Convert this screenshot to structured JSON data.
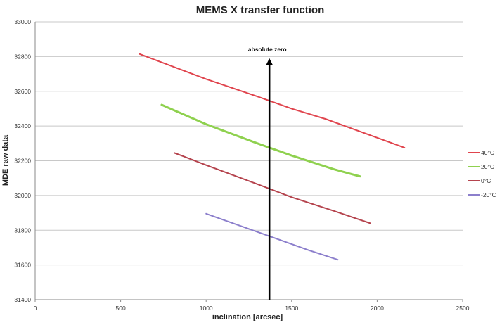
{
  "chart_data": {
    "type": "line",
    "title": "MEMS X transfer function",
    "xlabel": "inclination [arcsec]",
    "ylabel": "MDE raw data",
    "xlim": [
      0,
      2500
    ],
    "ylim": [
      31400,
      33000
    ],
    "xticks": [
      0,
      500,
      1000,
      1500,
      2000,
      2500
    ],
    "yticks": [
      31400,
      31600,
      31800,
      32000,
      32200,
      32400,
      32600,
      32800,
      33000
    ],
    "grid": "horizontal",
    "legend_position": "right",
    "series": [
      {
        "name": "40°C",
        "color": "#e0444d",
        "x": [
          610,
          1000,
          1300,
          1500,
          1700,
          2160
        ],
        "y": [
          32815,
          32670,
          32570,
          32500,
          32440,
          32275
        ]
      },
      {
        "name": "20°C",
        "color": "#8fd14f",
        "x": [
          740,
          1000,
          1300,
          1500,
          1750,
          1900
        ],
        "y": [
          32522,
          32410,
          32300,
          32230,
          32150,
          32110
        ]
      },
      {
        "name": "0°C",
        "color": "#b5444e",
        "x": [
          815,
          1000,
          1300,
          1500,
          1750,
          1960
        ],
        "y": [
          32245,
          32175,
          32065,
          31990,
          31910,
          31840
        ]
      },
      {
        "name": "-20°C",
        "color": "#8c7fcc",
        "x": [
          1000,
          1200,
          1400,
          1600,
          1770
        ],
        "y": [
          31895,
          31825,
          31755,
          31685,
          31630
        ]
      }
    ],
    "annotations": [
      {
        "text": "absolute zero",
        "type": "vertical-arrow",
        "x": 1370,
        "y_from": 31400,
        "y_to": 32790
      }
    ]
  }
}
